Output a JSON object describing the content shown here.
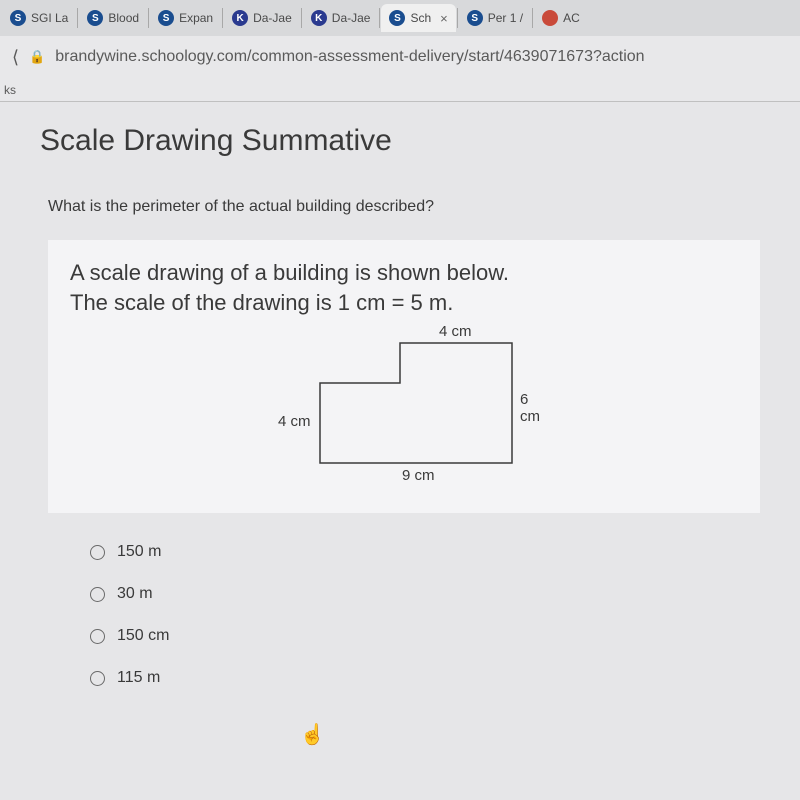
{
  "tabs": [
    {
      "icon": "S",
      "iconClass": "s-icon",
      "label": "SGI La",
      "active": false
    },
    {
      "icon": "S",
      "iconClass": "s-icon",
      "label": "Blood",
      "active": false
    },
    {
      "icon": "S",
      "iconClass": "s-icon",
      "label": "Expan",
      "active": false
    },
    {
      "icon": "K",
      "iconClass": "k-icon",
      "label": "Da-Jae",
      "active": false
    },
    {
      "icon": "K",
      "iconClass": "k-icon",
      "label": "Da-Jae",
      "active": false
    },
    {
      "icon": "S",
      "iconClass": "s-icon",
      "label": "Sch",
      "active": true
    },
    {
      "icon": "S",
      "iconClass": "s-icon",
      "label": "Per 1 /",
      "active": false
    },
    {
      "icon": "",
      "iconClass": "red-icon",
      "label": "AC",
      "active": false
    }
  ],
  "url": "brandywine.schoology.com/common-assessment-delivery/start/4639071673?action",
  "bookmarks_fragment": "ks",
  "page_title": "Scale Drawing Summative",
  "question": "What is the perimeter of the actual building described?",
  "problem_line1": "A scale drawing of a building is shown below.",
  "problem_line2": "The scale of the drawing is 1 cm = 5 m.",
  "diagram": {
    "top_label": "4 cm",
    "right_label": "6 cm",
    "left_label": "4 cm",
    "bottom_label": "9 cm",
    "stroke": "#3a3a3a",
    "fill": "#f4f4f6"
  },
  "answers": [
    "150 m",
    "30 m",
    "150 cm",
    "115 m"
  ]
}
